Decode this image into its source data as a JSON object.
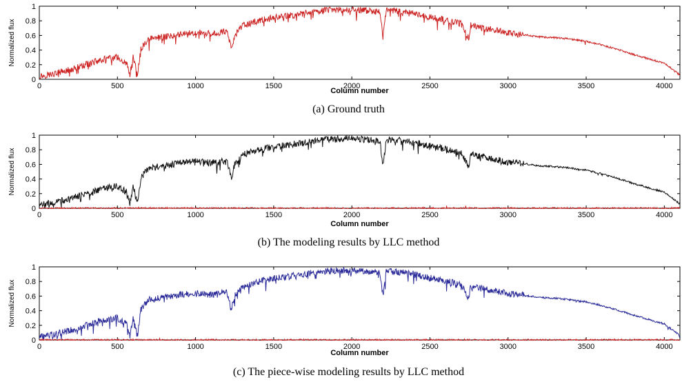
{
  "chart_data": [
    {
      "id": "a",
      "type": "line",
      "caption": "(a) Ground truth",
      "xlabel": "Column number",
      "ylabel": "Normalized flux",
      "xlim": [
        0,
        4100
      ],
      "ylim": [
        0,
        1
      ],
      "xticks": [
        0,
        500,
        1000,
        1500,
        2000,
        2500,
        3000,
        3500,
        4000
      ],
      "yticks": [
        0,
        0.2,
        0.4,
        0.6,
        0.8,
        1
      ],
      "ytick_labels": [
        "0",
        "0.2",
        "0.4",
        "0.6",
        "0.8",
        "1"
      ],
      "grid": false,
      "series": [
        {
          "color": "#cc2222",
          "style": "spectrum",
          "x": [
            0,
            100,
            200,
            300,
            400,
            500,
            560,
            580,
            600,
            630,
            650,
            700,
            800,
            900,
            1000,
            1100,
            1200,
            1230,
            1250,
            1300,
            1400,
            1500,
            1600,
            1700,
            1800,
            1900,
            2000,
            2100,
            2180,
            2200,
            2220,
            2300,
            2400,
            2500,
            2600,
            2700,
            2750,
            2760,
            2800,
            2900,
            3000,
            3100,
            3200,
            3300,
            3400,
            3500,
            3600,
            3700,
            3800,
            3900,
            4000,
            4100
          ],
          "y": [
            0.04,
            0.08,
            0.13,
            0.2,
            0.27,
            0.3,
            0.22,
            0.06,
            0.3,
            0.07,
            0.42,
            0.55,
            0.58,
            0.62,
            0.64,
            0.62,
            0.66,
            0.42,
            0.6,
            0.73,
            0.8,
            0.84,
            0.87,
            0.9,
            0.94,
            0.95,
            0.95,
            0.94,
            0.92,
            0.58,
            0.94,
            0.93,
            0.9,
            0.85,
            0.81,
            0.76,
            0.55,
            0.74,
            0.72,
            0.68,
            0.63,
            0.61,
            0.58,
            0.57,
            0.55,
            0.52,
            0.47,
            0.41,
            0.34,
            0.28,
            0.22,
            0.06
          ]
        }
      ]
    },
    {
      "id": "b",
      "type": "line",
      "caption": "(b) The modeling results by LLC method",
      "xlabel": "Column number",
      "ylabel": "Normalized flux",
      "xlim": [
        0,
        4100
      ],
      "ylim": [
        0,
        1
      ],
      "xticks": [
        0,
        500,
        1000,
        1500,
        2000,
        2500,
        3000,
        3500,
        4000
      ],
      "yticks": [
        0,
        0.2,
        0.4,
        0.6,
        0.8,
        1
      ],
      "ytick_labels": [
        "0",
        "0.2",
        "0.4",
        "0.6",
        "0.8",
        "1"
      ],
      "grid": false,
      "series": [
        {
          "color": "#111111",
          "style": "spectrum",
          "x": [
            0,
            100,
            200,
            300,
            400,
            500,
            560,
            580,
            600,
            630,
            650,
            700,
            800,
            900,
            1000,
            1100,
            1200,
            1230,
            1250,
            1300,
            1400,
            1500,
            1600,
            1700,
            1800,
            1900,
            2000,
            2100,
            2180,
            2200,
            2220,
            2300,
            2400,
            2500,
            2600,
            2700,
            2750,
            2760,
            2800,
            2900,
            3000,
            3100,
            3200,
            3300,
            3400,
            3500,
            3600,
            3700,
            3800,
            3900,
            4000,
            4100
          ],
          "y": [
            0.04,
            0.08,
            0.13,
            0.2,
            0.27,
            0.3,
            0.22,
            0.06,
            0.3,
            0.07,
            0.42,
            0.55,
            0.58,
            0.62,
            0.64,
            0.62,
            0.66,
            0.42,
            0.6,
            0.73,
            0.8,
            0.84,
            0.87,
            0.9,
            0.94,
            0.95,
            0.95,
            0.94,
            0.92,
            0.58,
            0.94,
            0.93,
            0.9,
            0.85,
            0.81,
            0.76,
            0.55,
            0.74,
            0.72,
            0.68,
            0.63,
            0.61,
            0.58,
            0.57,
            0.55,
            0.52,
            0.47,
            0.41,
            0.34,
            0.28,
            0.22,
            0.06
          ]
        },
        {
          "color": "#cc2222",
          "style": "residual",
          "x": [
            0,
            4100
          ],
          "y": [
            0,
            0
          ]
        }
      ]
    },
    {
      "id": "c",
      "type": "line",
      "caption": "(c) The piece-wise modeling results by LLC method",
      "xlabel": "Column number",
      "ylabel": "Normalized flux",
      "xlim": [
        0,
        4100
      ],
      "ylim": [
        0,
        1
      ],
      "xticks": [
        0,
        500,
        1000,
        1500,
        2000,
        2500,
        3000,
        3500,
        4000
      ],
      "yticks": [
        0,
        0.2,
        0.4,
        0.6,
        0.8,
        1
      ],
      "ytick_labels": [
        "0",
        "0.2",
        "0.4",
        "0.6",
        "0.8",
        "1"
      ],
      "grid": false,
      "series": [
        {
          "color": "#2a2a99",
          "style": "spectrum",
          "x": [
            0,
            100,
            200,
            300,
            400,
            500,
            560,
            580,
            600,
            630,
            650,
            700,
            800,
            900,
            1000,
            1100,
            1200,
            1230,
            1250,
            1300,
            1400,
            1500,
            1600,
            1700,
            1800,
            1900,
            2000,
            2100,
            2180,
            2200,
            2220,
            2300,
            2400,
            2500,
            2600,
            2700,
            2750,
            2760,
            2800,
            2900,
            3000,
            3100,
            3200,
            3300,
            3400,
            3500,
            3600,
            3700,
            3800,
            3900,
            4000,
            4100
          ],
          "y": [
            0.04,
            0.08,
            0.13,
            0.2,
            0.27,
            0.3,
            0.22,
            0.06,
            0.3,
            0.07,
            0.42,
            0.55,
            0.58,
            0.62,
            0.64,
            0.62,
            0.66,
            0.42,
            0.6,
            0.73,
            0.8,
            0.84,
            0.87,
            0.9,
            0.94,
            0.95,
            0.95,
            0.94,
            0.92,
            0.58,
            0.94,
            0.93,
            0.9,
            0.85,
            0.81,
            0.76,
            0.55,
            0.74,
            0.72,
            0.68,
            0.63,
            0.61,
            0.58,
            0.57,
            0.55,
            0.52,
            0.47,
            0.41,
            0.34,
            0.28,
            0.22,
            0.06
          ]
        },
        {
          "color": "#cc2222",
          "style": "residual",
          "x": [
            0,
            4100
          ],
          "y": [
            0,
            0
          ]
        }
      ]
    }
  ]
}
